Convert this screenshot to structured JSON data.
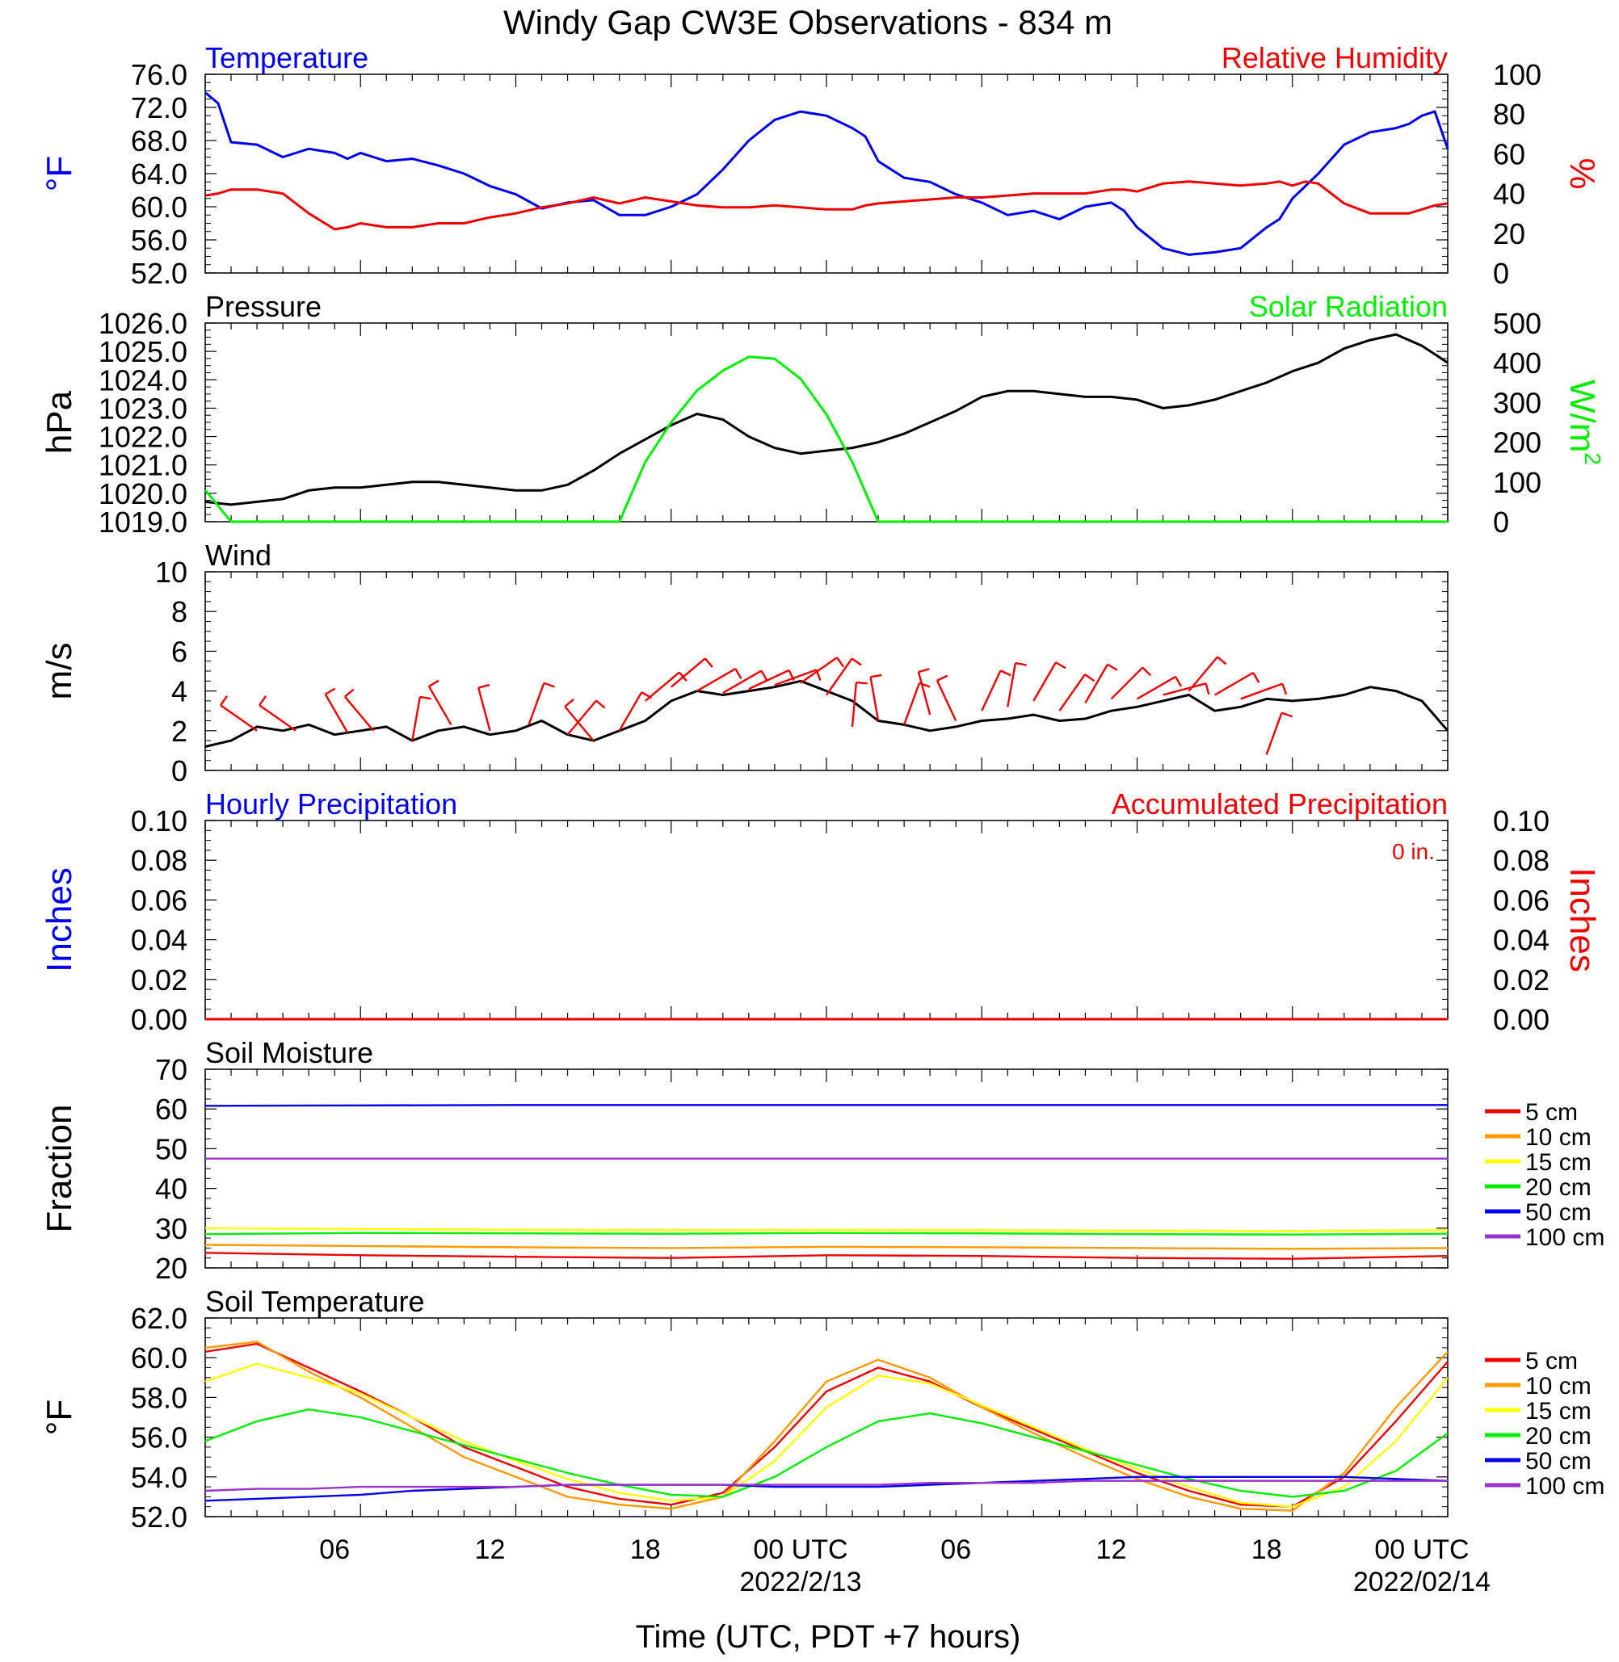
{
  "title": "Windy Gap CW3E Observations - 834 m",
  "xlabel": "Time (UTC, PDT +7 hours)",
  "x_ticks": [
    "06",
    "12",
    "18",
    "00 UTC",
    "06",
    "12",
    "18",
    "00 UTC"
  ],
  "x_dates": [
    "2022/2/13",
    "2022/02/14"
  ],
  "colors": {
    "blue": "#0000ee",
    "red": "#ee0000",
    "green": "#00ee00",
    "black": "#000000"
  },
  "chart_data": [
    {
      "type": "line",
      "title_left": "Temperature",
      "title_right": "Relative Humidity",
      "ylabel_left": "°F",
      "ylabel_right": "%",
      "yticks_left": [
        "76.0",
        "72.0",
        "68.0",
        "64.0",
        "60.0",
        "56.0",
        "52.0"
      ],
      "yticks_right": [
        "100",
        "80",
        "60",
        "40",
        "20",
        "0"
      ],
      "ylim_left": [
        52,
        76
      ],
      "ylim_right": [
        0,
        100
      ],
      "x_hours": [
        0,
        0.5,
        1,
        2,
        3,
        4,
        5,
        5.5,
        6,
        7,
        8,
        9,
        10,
        11,
        12,
        13,
        14,
        15,
        16,
        17,
        18,
        19,
        20,
        21,
        22,
        23,
        24,
        25,
        25.5,
        26,
        27,
        28,
        29,
        30,
        31,
        32,
        33,
        34,
        35,
        35.5,
        36,
        37,
        38,
        39,
        40,
        41,
        41.5,
        42,
        42.5,
        43,
        44,
        45,
        46,
        46.5,
        47,
        47.5,
        48
      ],
      "series": [
        {
          "name": "Temperature",
          "color": "#0000ee",
          "values": [
            73.8,
            72.5,
            67.8,
            67.5,
            66.0,
            67.0,
            66.5,
            65.8,
            66.5,
            65.5,
            65.8,
            65.0,
            64.0,
            62.5,
            61.5,
            59.8,
            60.5,
            60.8,
            59.0,
            59.0,
            60.0,
            61.5,
            64.5,
            68.0,
            70.5,
            71.5,
            71.0,
            69.5,
            68.5,
            65.5,
            63.5,
            63.0,
            61.5,
            60.5,
            59.0,
            59.5,
            58.5,
            60.0,
            60.5,
            59.5,
            57.5,
            55.0,
            54.2,
            54.5,
            55.0,
            57.5,
            58.5,
            61.0,
            62.5,
            64.0,
            67.5,
            69.0,
            69.5,
            70.0,
            71.0,
            71.5,
            67.0
          ]
        },
        {
          "name": "Relative Humidity",
          "color": "#ee0000",
          "values": [
            39,
            40,
            42,
            42,
            40,
            30,
            22,
            23,
            25,
            23,
            23,
            25,
            25,
            28,
            30,
            33,
            35,
            38,
            35,
            38,
            36,
            34,
            33,
            33,
            34,
            33,
            32,
            32,
            34,
            35,
            36,
            37,
            38,
            38,
            39,
            40,
            40,
            40,
            42,
            42,
            41,
            45,
            46,
            45,
            44,
            45,
            46,
            44,
            46,
            45,
            35,
            30,
            30,
            30,
            32,
            34,
            35
          ]
        }
      ]
    },
    {
      "type": "line",
      "title_left": "Pressure",
      "title_right": "Solar Radiation",
      "ylabel_left": "hPa",
      "ylabel_right_base": "W/m",
      "ylabel_right_sup": "2",
      "yticks_left": [
        "1026.0",
        "1025.0",
        "1024.0",
        "1023.0",
        "1022.0",
        "1021.0",
        "1020.0",
        "1019.0"
      ],
      "yticks_right": [
        "500",
        "400",
        "300",
        "200",
        "100",
        "0"
      ],
      "ylim_left": [
        1019,
        1026
      ],
      "ylim_right": [
        0,
        500
      ],
      "x_hours": [
        0,
        1,
        2,
        3,
        4,
        5,
        6,
        7,
        8,
        9,
        10,
        11,
        12,
        13,
        14,
        15,
        16,
        17,
        18,
        19,
        20,
        21,
        22,
        23,
        24,
        25,
        26,
        27,
        28,
        29,
        30,
        31,
        32,
        33,
        34,
        35,
        36,
        37,
        38,
        39,
        40,
        41,
        42,
        43,
        44,
        45,
        46,
        47,
        48
      ],
      "series": [
        {
          "name": "Pressure",
          "color": "#000000",
          "values": [
            1019.7,
            1019.6,
            1019.7,
            1019.8,
            1020.1,
            1020.2,
            1020.2,
            1020.3,
            1020.4,
            1020.4,
            1020.3,
            1020.2,
            1020.1,
            1020.1,
            1020.3,
            1020.8,
            1021.4,
            1021.9,
            1022.4,
            1022.8,
            1022.6,
            1022.0,
            1021.6,
            1021.4,
            1021.5,
            1021.6,
            1021.8,
            1022.1,
            1022.5,
            1022.9,
            1023.4,
            1023.6,
            1023.6,
            1023.5,
            1023.4,
            1023.4,
            1023.3,
            1023.0,
            1023.1,
            1023.3,
            1023.6,
            1023.9,
            1024.3,
            1024.6,
            1025.1,
            1025.4,
            1025.6,
            1025.2,
            1024.6
          ]
        },
        {
          "name": "Solar Radiation",
          "color": "#00ee00",
          "values": [
            80,
            0,
            0,
            0,
            0,
            0,
            0,
            0,
            0,
            0,
            0,
            0,
            0,
            0,
            0,
            0,
            0,
            150,
            250,
            330,
            380,
            415,
            410,
            360,
            270,
            150,
            0,
            0,
            0,
            0,
            0,
            0,
            0,
            0,
            0,
            0,
            0,
            0,
            0,
            0,
            0,
            0,
            0,
            0,
            0,
            0,
            0,
            0,
            0
          ]
        }
      ]
    },
    {
      "type": "line",
      "title_left": "Wind",
      "ylabel_left": "m/s",
      "yticks_left": [
        "10",
        "8",
        "6",
        "4",
        "2",
        "0"
      ],
      "ylim_left": [
        0,
        10
      ],
      "x_hours": [
        0,
        1,
        2,
        3,
        4,
        5,
        6,
        7,
        8,
        9,
        10,
        11,
        12,
        13,
        14,
        15,
        16,
        17,
        18,
        19,
        20,
        21,
        22,
        23,
        24,
        25,
        26,
        27,
        28,
        29,
        30,
        31,
        32,
        33,
        34,
        35,
        36,
        37,
        38,
        39,
        40,
        41,
        42,
        43,
        44,
        45,
        46,
        47,
        48
      ],
      "series": [
        {
          "name": "Wind",
          "color": "#000000",
          "values": [
            1.2,
            1.5,
            2.2,
            2.0,
            2.3,
            1.8,
            2.0,
            2.2,
            1.5,
            2.0,
            2.2,
            1.8,
            2.0,
            2.5,
            1.8,
            1.5,
            2.0,
            2.5,
            3.5,
            4.0,
            3.8,
            4.0,
            4.2,
            4.5,
            4.0,
            3.5,
            2.5,
            2.3,
            2.0,
            2.2,
            2.5,
            2.6,
            2.8,
            2.5,
            2.6,
            3.0,
            3.2,
            3.5,
            3.8,
            3.0,
            3.2,
            3.6,
            3.5,
            3.6,
            3.8,
            4.2,
            4.0,
            3.5,
            2.0
          ]
        }
      ],
      "barbs": [
        {
          "x": 2,
          "y": 2.0,
          "angle": -55
        },
        {
          "x": 3.5,
          "y": 2.0,
          "angle": -55
        },
        {
          "x": 5.5,
          "y": 1.9,
          "angle": -30
        },
        {
          "x": 6.5,
          "y": 2.0,
          "angle": -40
        },
        {
          "x": 8,
          "y": 1.5,
          "angle": 10
        },
        {
          "x": 9.5,
          "y": 2.3,
          "angle": -30
        },
        {
          "x": 11,
          "y": 2.0,
          "angle": -15
        },
        {
          "x": 12.5,
          "y": 2.3,
          "angle": 20
        },
        {
          "x": 14,
          "y": 1.8,
          "angle": 40
        },
        {
          "x": 15,
          "y": 1.5,
          "angle": -40
        },
        {
          "x": 16,
          "y": 2.0,
          "angle": 30
        },
        {
          "x": 17,
          "y": 3.5,
          "angle": 50
        },
        {
          "x": 18,
          "y": 4.2,
          "angle": 50
        },
        {
          "x": 19,
          "y": 4.0,
          "angle": 60
        },
        {
          "x": 20,
          "y": 3.9,
          "angle": 60
        },
        {
          "x": 21,
          "y": 4.1,
          "angle": 65
        },
        {
          "x": 22,
          "y": 4.3,
          "angle": 70
        },
        {
          "x": 23,
          "y": 4.4,
          "angle": 55
        },
        {
          "x": 24,
          "y": 3.8,
          "angle": 35
        },
        {
          "x": 25,
          "y": 2.2,
          "angle": 5
        },
        {
          "x": 26,
          "y": 2.5,
          "angle": -10
        },
        {
          "x": 27,
          "y": 2.3,
          "angle": 20
        },
        {
          "x": 28,
          "y": 2.8,
          "angle": -15
        },
        {
          "x": 29,
          "y": 2.5,
          "angle": -25
        },
        {
          "x": 30,
          "y": 3.0,
          "angle": 25
        },
        {
          "x": 31,
          "y": 3.2,
          "angle": 10
        },
        {
          "x": 32,
          "y": 3.5,
          "angle": 30
        },
        {
          "x": 33,
          "y": 3.0,
          "angle": 35
        },
        {
          "x": 34,
          "y": 3.4,
          "angle": 30
        },
        {
          "x": 35,
          "y": 3.6,
          "angle": 45
        },
        {
          "x": 36,
          "y": 3.6,
          "angle": 60
        },
        {
          "x": 37,
          "y": 3.8,
          "angle": 75
        },
        {
          "x": 38,
          "y": 4.0,
          "angle": 40
        },
        {
          "x": 39,
          "y": 3.8,
          "angle": 60
        },
        {
          "x": 40,
          "y": 3.6,
          "angle": 70
        },
        {
          "x": 41,
          "y": 0.8,
          "angle": 20
        }
      ]
    },
    {
      "type": "line",
      "title_left": "Hourly Precipitation",
      "title_right": "Accumulated Precipitation",
      "annotation": "0 in.",
      "ylabel_left": "Inches",
      "ylabel_right": "Inches",
      "yticks_left": [
        "0.10",
        "0.08",
        "0.06",
        "0.04",
        "0.02",
        "0.00"
      ],
      "yticks_right": [
        "0.10",
        "0.08",
        "0.06",
        "0.04",
        "0.02",
        "0.00"
      ],
      "ylim_left": [
        0,
        0.1
      ],
      "ylim_right": [
        0,
        0.1
      ],
      "x_hours": [
        0,
        48
      ],
      "series": [
        {
          "name": "Hourly Precipitation",
          "color": "#0000ee",
          "values": [
            0,
            0
          ]
        },
        {
          "name": "Accumulated Precipitation",
          "color": "#ee0000",
          "values": [
            0,
            0
          ]
        }
      ]
    },
    {
      "type": "line",
      "title_left": "Soil Moisture",
      "ylabel_left": "Fraction",
      "yticks_left": [
        "70",
        "60",
        "50",
        "40",
        "30",
        "20"
      ],
      "ylim_left": [
        20,
        70
      ],
      "legend": "right",
      "x_hours": [
        0,
        6,
        12,
        18,
        24,
        30,
        36,
        42,
        48
      ],
      "series": [
        {
          "name": "5 cm",
          "color": "#ee0000",
          "values": [
            23.8,
            23.2,
            22.8,
            22.5,
            23.2,
            23.0,
            22.5,
            22.3,
            23.0
          ]
        },
        {
          "name": "10 cm",
          "color": "#ff9900",
          "values": [
            25.8,
            25.5,
            25.2,
            25.0,
            25.3,
            25.2,
            25.0,
            24.8,
            25.0
          ]
        },
        {
          "name": "15 cm",
          "color": "#ffff00",
          "values": [
            30.0,
            29.8,
            29.6,
            29.5,
            29.6,
            29.5,
            29.4,
            29.3,
            29.5
          ]
        },
        {
          "name": "20 cm",
          "color": "#00ee00",
          "values": [
            28.5,
            28.8,
            28.7,
            28.6,
            28.8,
            28.7,
            28.5,
            28.4,
            28.6
          ]
        },
        {
          "name": "50 cm",
          "color": "#0000ee",
          "values": [
            60.8,
            60.9,
            61.0,
            61.0,
            61.0,
            61.0,
            61.0,
            61.0,
            61.0
          ]
        },
        {
          "name": "100 cm",
          "color": "#9933cc",
          "values": [
            47.5,
            47.5,
            47.5,
            47.5,
            47.5,
            47.5,
            47.5,
            47.5,
            47.5
          ]
        }
      ]
    },
    {
      "type": "line",
      "title_left": "Soil Temperature",
      "ylabel_left": "°F",
      "yticks_left": [
        "62.0",
        "60.0",
        "58.0",
        "56.0",
        "54.0",
        "52.0"
      ],
      "ylim_left": [
        52,
        62
      ],
      "legend": "right",
      "x_hours": [
        0,
        2,
        4,
        6,
        8,
        10,
        12,
        14,
        16,
        18,
        20,
        22,
        24,
        26,
        28,
        30,
        32,
        34,
        36,
        38,
        40,
        42,
        44,
        46,
        48
      ],
      "series": [
        {
          "name": "5 cm",
          "color": "#ee0000",
          "values": [
            60.3,
            60.7,
            59.5,
            58.3,
            57.0,
            55.5,
            54.5,
            53.5,
            52.9,
            52.6,
            53.2,
            55.5,
            58.3,
            59.5,
            58.8,
            57.5,
            56.4,
            55.3,
            54.2,
            53.3,
            52.6,
            52.5,
            54.0,
            56.8,
            59.8
          ]
        },
        {
          "name": "10 cm",
          "color": "#ff9900",
          "values": [
            60.5,
            60.8,
            59.3,
            58.0,
            56.5,
            55.0,
            54.0,
            53.0,
            52.6,
            52.4,
            53.0,
            55.8,
            58.8,
            59.9,
            59.0,
            57.5,
            56.2,
            55.0,
            53.9,
            53.0,
            52.4,
            52.3,
            54.2,
            57.5,
            60.3
          ]
        },
        {
          "name": "15 cm",
          "color": "#ffff00",
          "values": [
            58.8,
            59.7,
            59.0,
            58.2,
            57.0,
            55.8,
            54.8,
            53.9,
            53.2,
            52.8,
            53.0,
            54.8,
            57.5,
            59.1,
            58.7,
            57.6,
            56.5,
            55.4,
            54.4,
            53.5,
            52.7,
            52.5,
            53.5,
            55.8,
            59.0
          ]
        },
        {
          "name": "20 cm",
          "color": "#00ee00",
          "values": [
            55.8,
            56.8,
            57.4,
            57.0,
            56.3,
            55.6,
            54.9,
            54.2,
            53.6,
            53.1,
            53.0,
            54.0,
            55.5,
            56.8,
            57.2,
            56.7,
            56.0,
            55.3,
            54.6,
            53.9,
            53.3,
            53.0,
            53.3,
            54.3,
            56.2
          ]
        },
        {
          "name": "50 cm",
          "color": "#0000ee",
          "values": [
            52.8,
            52.9,
            53.0,
            53.1,
            53.3,
            53.4,
            53.5,
            53.6,
            53.6,
            53.6,
            53.6,
            53.5,
            53.5,
            53.5,
            53.6,
            53.7,
            53.8,
            53.9,
            54.0,
            54.0,
            54.0,
            54.0,
            54.0,
            53.9,
            53.8
          ]
        },
        {
          "name": "100 cm",
          "color": "#9933cc",
          "values": [
            53.3,
            53.4,
            53.4,
            53.5,
            53.5,
            53.5,
            53.5,
            53.6,
            53.6,
            53.6,
            53.6,
            53.6,
            53.6,
            53.6,
            53.7,
            53.7,
            53.7,
            53.8,
            53.8,
            53.8,
            53.8,
            53.8,
            53.8,
            53.8,
            53.8
          ]
        }
      ]
    }
  ]
}
